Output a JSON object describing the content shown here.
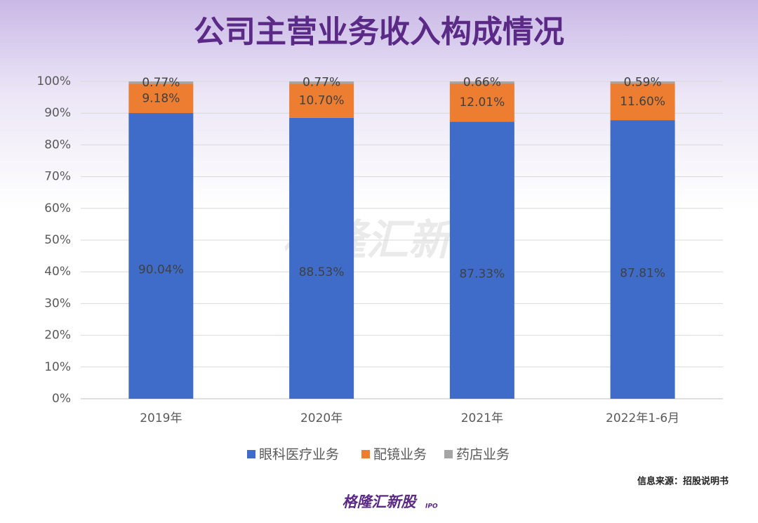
{
  "chart_data": {
    "type": "stacked_bar",
    "title": "公司主营业务收入构成情况",
    "categories": [
      "2019年",
      "2020年",
      "2021年",
      "2022年1-6月"
    ],
    "series": [
      {
        "name": "眼科医疗业务",
        "color": "#3f6cc9",
        "values": [
          90.04,
          88.53,
          87.33,
          87.81
        ],
        "value_labels": [
          "90.04%",
          "88.53%",
          "87.33%",
          "87.81%"
        ]
      },
      {
        "name": "配镜业务",
        "color": "#ed7d31",
        "values": [
          9.18,
          10.7,
          12.01,
          11.6
        ],
        "value_labels": [
          "9.18%",
          "10.70%",
          "12.01%",
          "11.60%"
        ]
      },
      {
        "name": "药店业务",
        "color": "#a5a5a5",
        "values": [
          0.77,
          0.77,
          0.66,
          0.59
        ],
        "value_labels": [
          "0.77%",
          "0.77%",
          "0.66%",
          "0.59%"
        ]
      }
    ],
    "ylim": [
      0,
      100
    ],
    "yticks": [
      {
        "value": 0,
        "label": "0%"
      },
      {
        "value": 10,
        "label": "10%"
      },
      {
        "value": 20,
        "label": "20%"
      },
      {
        "value": 30,
        "label": "30%"
      },
      {
        "value": 40,
        "label": "40%"
      },
      {
        "value": 50,
        "label": "50%"
      },
      {
        "value": 60,
        "label": "60%"
      },
      {
        "value": 70,
        "label": "70%"
      },
      {
        "value": 80,
        "label": "80%"
      },
      {
        "value": 90,
        "label": "90%"
      },
      {
        "value": 100,
        "label": "100%"
      }
    ],
    "grid": true,
    "legend": "bottom",
    "source": "信息来源：招股说明书",
    "logo": "格隆汇新股",
    "logo_sub": "IPO"
  }
}
